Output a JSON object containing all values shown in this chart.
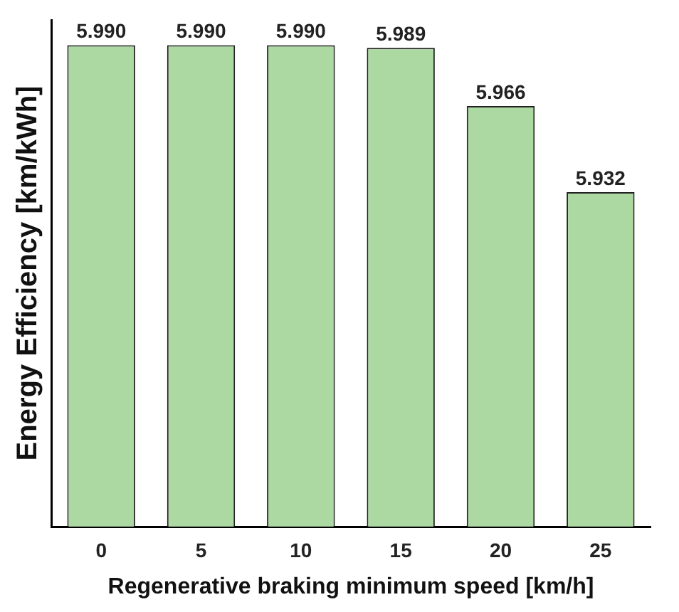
{
  "chart_data": {
    "type": "bar",
    "xlabel": "Regenerative braking minimum speed [km/h]",
    "ylabel": "Energy Efficiency [km/kWh]",
    "categories": [
      "0",
      "5",
      "10",
      "15",
      "20",
      "25"
    ],
    "values": [
      5.99,
      5.99,
      5.99,
      5.989,
      5.966,
      5.932
    ],
    "value_labels": [
      "5.990",
      "5.990",
      "5.990",
      "5.989",
      "5.966",
      "5.932"
    ],
    "color": "#acd9a2",
    "ylim": [
      5.8,
      6.0
    ],
    "tick_labels": "x",
    "grid": false,
    "legend": false
  }
}
